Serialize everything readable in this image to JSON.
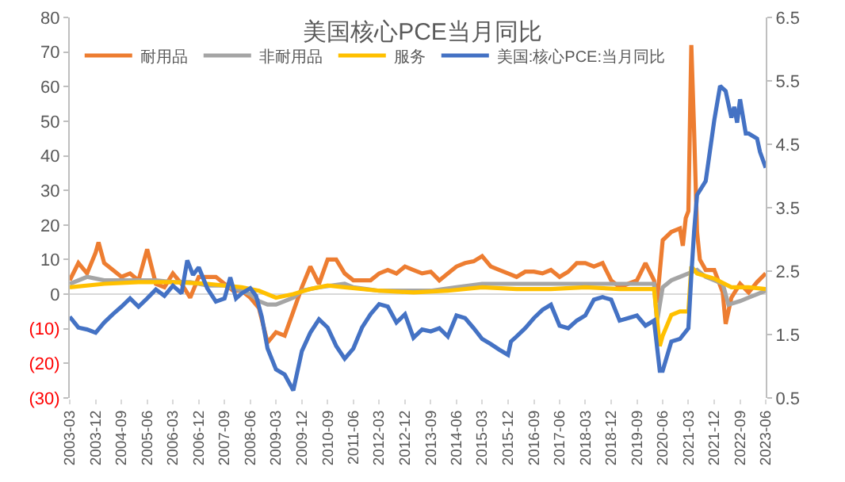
{
  "chart_data": {
    "type": "line",
    "title": "美国核心PCE当月同比",
    "xlim": [
      "2003-03",
      "2023-06"
    ],
    "xticks": [
      "2003-03",
      "2003-12",
      "2004-09",
      "2005-06",
      "2006-03",
      "2006-12",
      "2007-09",
      "2008-06",
      "2009-03",
      "2009-12",
      "2010-09",
      "2011-06",
      "2012-03",
      "2012-12",
      "2013-09",
      "2014-06",
      "2015-03",
      "2015-12",
      "2016-09",
      "2017-06",
      "2018-03",
      "2018-12",
      "2019-09",
      "2020-06",
      "2021-03",
      "2021-12",
      "2022-09",
      "2023-06"
    ],
    "ylim": [
      -30,
      80
    ],
    "yticks": [
      {
        "value": -30,
        "label": "(30)"
      },
      {
        "value": -20,
        "label": "(20)"
      },
      {
        "value": -10,
        "label": "(10)"
      },
      0,
      10,
      20,
      30,
      40,
      50,
      60,
      70,
      80
    ],
    "y2lim": [
      0.5,
      6.5
    ],
    "y2ticks": [
      0.5,
      1.5,
      2.5,
      3.5,
      4.5,
      5.5,
      6.5
    ],
    "legend": "top",
    "series": [
      {
        "name": "耐用品",
        "color": "#ed7d31",
        "x": [
          "2003-03",
          "2003-06",
          "2003-09",
          "2003-12",
          "2004-01",
          "2004-03",
          "2004-06",
          "2004-09",
          "2004-12",
          "2005-03",
          "2005-06",
          "2005-09",
          "2005-12",
          "2006-03",
          "2006-06",
          "2006-09",
          "2006-12",
          "2007-03",
          "2007-06",
          "2007-09",
          "2007-12",
          "2008-03",
          "2008-06",
          "2008-09",
          "2008-12",
          "2009-03",
          "2009-06",
          "2009-09",
          "2009-12",
          "2010-03",
          "2010-06",
          "2010-09",
          "2010-12",
          "2011-03",
          "2011-06",
          "2011-09",
          "2011-12",
          "2012-03",
          "2012-06",
          "2012-09",
          "2012-12",
          "2013-03",
          "2013-06",
          "2013-09",
          "2013-12",
          "2014-03",
          "2014-06",
          "2014-09",
          "2014-12",
          "2015-03",
          "2015-06",
          "2015-09",
          "2015-12",
          "2016-03",
          "2016-06",
          "2016-09",
          "2016-12",
          "2017-03",
          "2017-06",
          "2017-09",
          "2017-12",
          "2018-03",
          "2018-06",
          "2018-09",
          "2018-12",
          "2019-03",
          "2019-06",
          "2019-09",
          "2019-12",
          "2020-03",
          "2020-04",
          "2020-06",
          "2020-09",
          "2020-12",
          "2021-01",
          "2021-02",
          "2021-03",
          "2021-04",
          "2021-05",
          "2021-06",
          "2021-07",
          "2021-09",
          "2021-12",
          "2022-03",
          "2022-04",
          "2022-06",
          "2022-09",
          "2022-12",
          "2023-03",
          "2023-06"
        ],
        "values": [
          4,
          9,
          6,
          12,
          15,
          9,
          7,
          5,
          6,
          4,
          13,
          3,
          2,
          6,
          3,
          -1,
          5,
          5,
          5,
          3,
          1,
          1,
          -1,
          -4,
          -14,
          -11,
          -12,
          -5,
          2,
          8,
          3,
          10,
          10,
          6,
          4,
          4,
          4,
          6,
          7,
          6,
          8,
          7,
          6,
          6.5,
          4,
          6,
          8,
          9,
          9.5,
          11,
          8,
          7,
          6,
          5,
          6.5,
          6.5,
          6,
          7,
          5,
          6.5,
          9,
          9,
          8,
          9,
          4,
          2,
          3,
          4,
          9,
          4,
          -2.5,
          15.6,
          18,
          19,
          14,
          22,
          24,
          72,
          47,
          18,
          10,
          7,
          7,
          0.5,
          -8.6,
          -1,
          3,
          0.5,
          3.5,
          6
        ]
      },
      {
        "name": "非耐用品",
        "color": "#a5a5a5",
        "x": [
          "2003-03",
          "2003-09",
          "2004-03",
          "2004-09",
          "2005-03",
          "2005-09",
          "2006-03",
          "2006-09",
          "2007-03",
          "2007-09",
          "2008-03",
          "2008-06",
          "2008-09",
          "2008-12",
          "2009-03",
          "2009-06",
          "2009-09",
          "2009-12",
          "2010-06",
          "2011-03",
          "2011-06",
          "2012-03",
          "2012-09",
          "2013-03",
          "2013-09",
          "2014-06",
          "2015-03",
          "2016-03",
          "2017-03",
          "2018-03",
          "2019-03",
          "2019-12",
          "2020-03",
          "2020-04",
          "2020-06",
          "2020-09",
          "2020-12",
          "2021-03",
          "2021-06",
          "2021-09",
          "2021-12",
          "2022-03",
          "2022-05",
          "2022-09",
          "2022-12",
          "2023-03",
          "2023-06"
        ],
        "values": [
          3,
          5,
          4,
          4,
          4,
          4,
          3.5,
          3.5,
          2.5,
          2.5,
          1,
          0,
          -2,
          -3,
          -3,
          -2,
          -1,
          1,
          2,
          3,
          2,
          1,
          1,
          1,
          1,
          2,
          3,
          3,
          3,
          3,
          3,
          3,
          3,
          -8,
          2,
          4,
          5,
          6,
          7,
          5,
          4,
          3,
          -3,
          -2,
          -1,
          0,
          1
        ]
      },
      {
        "name": "服务",
        "color": "#ffc000",
        "x": [
          "2003-03",
          "2004-03",
          "2005-03",
          "2006-03",
          "2007-03",
          "2008-03",
          "2008-09",
          "2009-03",
          "2009-06",
          "2009-09",
          "2010-03",
          "2010-09",
          "2011-03",
          "2012-03",
          "2013-03",
          "2014-03",
          "2015-03",
          "2016-03",
          "2017-03",
          "2018-03",
          "2019-03",
          "2020-03",
          "2020-05",
          "2020-06",
          "2020-09",
          "2020-12",
          "2021-03",
          "2021-04",
          "2021-06",
          "2021-12",
          "2022-06",
          "2022-12",
          "2023-06"
        ],
        "values": [
          2,
          3,
          3.5,
          3.5,
          3,
          2,
          1,
          -1,
          -0.5,
          0,
          1.5,
          2.5,
          2,
          1,
          0.5,
          1,
          2,
          1.5,
          1.5,
          2,
          1.5,
          1.5,
          -15,
          -12,
          -6,
          -5,
          -5,
          8,
          6,
          4.5,
          2,
          2,
          1.5
        ]
      },
      {
        "name": "美国:核心PCE:当月同比",
        "color": "#4472c4",
        "axis": "y2",
        "x": [
          "2003-03",
          "2003-06",
          "2003-09",
          "2003-12",
          "2004-03",
          "2004-06",
          "2004-09",
          "2004-12",
          "2005-03",
          "2005-06",
          "2005-09",
          "2005-12",
          "2006-03",
          "2006-06",
          "2006-08",
          "2006-10",
          "2006-12",
          "2007-03",
          "2007-06",
          "2007-09",
          "2007-11",
          "2008-01",
          "2008-03",
          "2008-06",
          "2008-08",
          "2008-10",
          "2008-12",
          "2009-03",
          "2009-06",
          "2009-09",
          "2009-12",
          "2010-03",
          "2010-06",
          "2010-09",
          "2010-12",
          "2011-03",
          "2011-06",
          "2011-09",
          "2011-12",
          "2012-03",
          "2012-06",
          "2012-09",
          "2012-12",
          "2013-03",
          "2013-06",
          "2013-09",
          "2013-12",
          "2014-03",
          "2014-06",
          "2014-09",
          "2014-12",
          "2015-03",
          "2015-06",
          "2015-09",
          "2015-12",
          "2016-01",
          "2016-03",
          "2016-06",
          "2016-09",
          "2016-12",
          "2017-03",
          "2017-06",
          "2017-09",
          "2017-12",
          "2018-03",
          "2018-06",
          "2018-09",
          "2018-12",
          "2019-03",
          "2019-06",
          "2019-09",
          "2019-12",
          "2020-03",
          "2020-05",
          "2020-06",
          "2020-09",
          "2020-12",
          "2021-03",
          "2021-04",
          "2021-05",
          "2021-06",
          "2021-09",
          "2021-12",
          "2022-02",
          "2022-04",
          "2022-06",
          "2022-07",
          "2022-08",
          "2022-09",
          "2022-11",
          "2022-12",
          "2023-03",
          "2023-04",
          "2023-06"
        ],
        "values": [
          1.78,
          1.61,
          1.58,
          1.53,
          1.69,
          1.82,
          1.94,
          2.07,
          1.94,
          2.07,
          2.21,
          2.11,
          2.27,
          2.15,
          2.67,
          2.44,
          2.56,
          2.23,
          2.02,
          2.07,
          2.4,
          2.07,
          2.15,
          2.23,
          2.11,
          1.78,
          1.28,
          0.95,
          0.87,
          0.62,
          1.24,
          1.53,
          1.74,
          1.61,
          1.32,
          1.12,
          1.28,
          1.61,
          1.82,
          1.98,
          1.94,
          1.69,
          1.82,
          1.45,
          1.58,
          1.55,
          1.6,
          1.47,
          1.8,
          1.76,
          1.6,
          1.43,
          1.35,
          1.26,
          1.18,
          1.39,
          1.47,
          1.6,
          1.76,
          1.89,
          1.97,
          1.64,
          1.6,
          1.72,
          1.8,
          2.05,
          2.09,
          2.05,
          1.72,
          1.76,
          1.8,
          1.64,
          1.72,
          0.93,
          0.93,
          1.39,
          1.43,
          1.6,
          2.43,
          3.13,
          3.7,
          3.92,
          4.88,
          5.42,
          5.34,
          4.92,
          5.09,
          4.84,
          5.21,
          4.67,
          4.67,
          4.59,
          4.38,
          4.13
        ]
      }
    ]
  }
}
